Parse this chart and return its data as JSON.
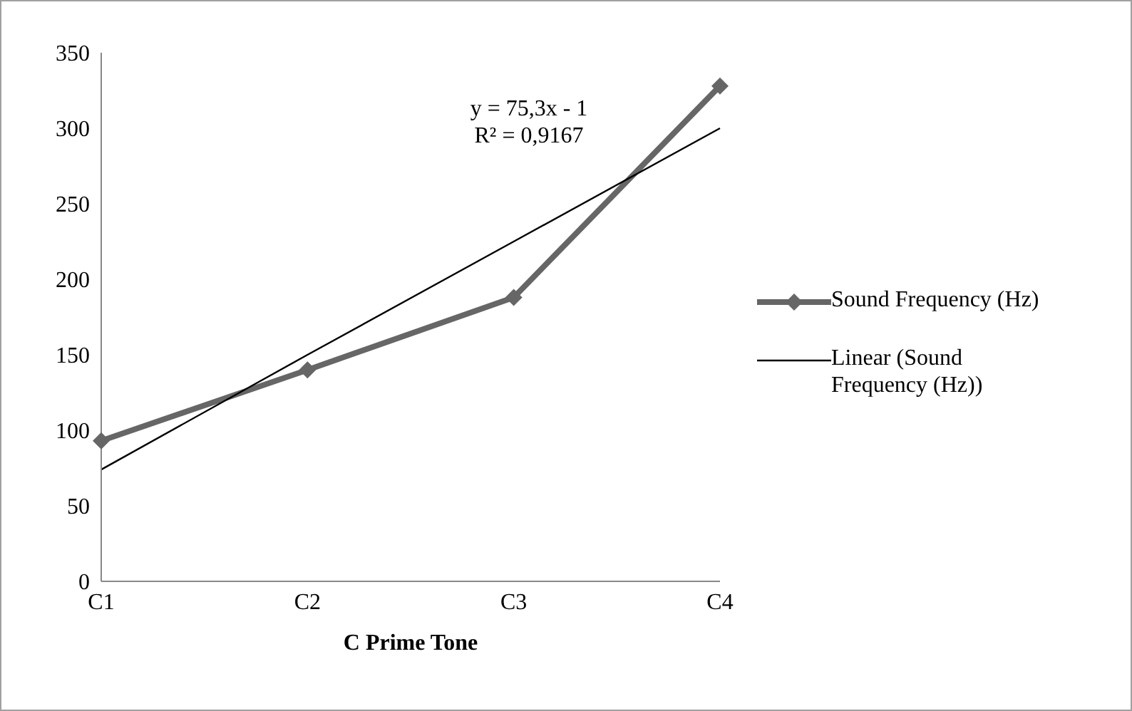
{
  "chart_data": {
    "type": "line",
    "xlabel": "C Prime Tone",
    "categories": [
      "C1",
      "C2",
      "C3",
      "C4"
    ],
    "series": [
      {
        "name": "Sound Frequency (Hz)",
        "color": "#666666",
        "values": [
          93,
          140,
          188,
          328
        ],
        "marker": "diamond"
      },
      {
        "name": "Linear (Sound Frequency (Hz))",
        "type": "line",
        "x": [
          "C1",
          "C2",
          "C3",
          "C4"
        ],
        "color": "#000000",
        "values": [
          74,
          150,
          225,
          300
        ],
        "marker": "none"
      }
    ],
    "ylim": [
      0,
      350
    ],
    "yticks": [
      0,
      50,
      100,
      150,
      200,
      250,
      300,
      350
    ],
    "annotations": [
      "y = 75,3x - 1",
      "R² = 0,9167"
    ],
    "grid": false,
    "legend": "right"
  }
}
